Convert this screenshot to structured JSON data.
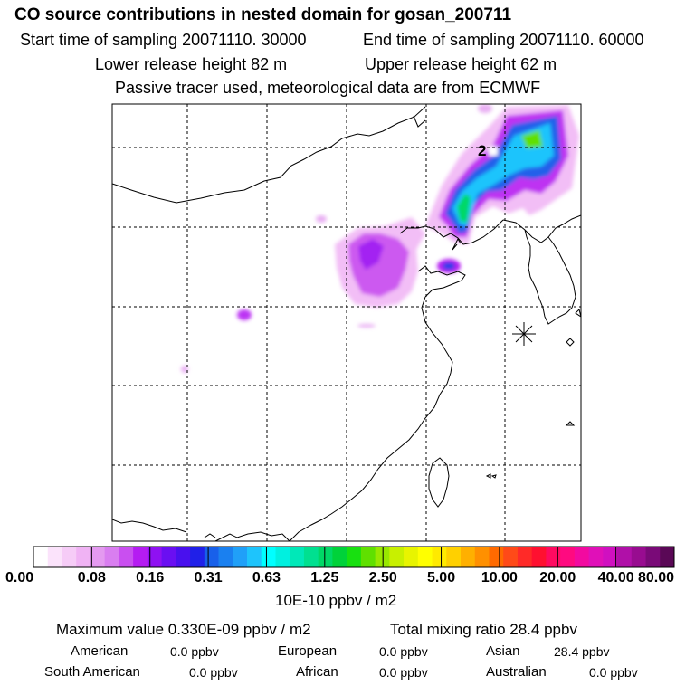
{
  "header": {
    "title": "CO  source contributions in nested domain for gosan_200711",
    "start_label": "Start time of sampling 20071110. 30000",
    "end_label": "End time of sampling 20071110. 60000",
    "lower_release": "Lower release height   82 m",
    "upper_release": "Upper release height   62 m",
    "tracer_note": "Passive tracer used, meteorological data are from ECMWF"
  },
  "map": {
    "contour_label": "2",
    "station_marker": "receptor-asterisk"
  },
  "colorbar": {
    "unit_label": "10E-10 ppbv / m2",
    "ticks": [
      "0.00",
      "0.08",
      "0.16",
      "0.31",
      "0.63",
      "1.25",
      "2.50",
      "5.00",
      "10.00",
      "20.00",
      "40.00",
      "80.00"
    ],
    "segment_colors": [
      "#ffffff",
      "#fbe3fb",
      "#f6ccf7",
      "#f0b3f4",
      "#e49af0",
      "#d97ef0",
      "#c94ff0",
      "#b51cf2",
      "#8f11f2",
      "#6a0ff2",
      "#4910ee",
      "#2020e8",
      "#1860ea",
      "#1a80f0",
      "#20a0f8",
      "#1ec4fc",
      "#00ffff",
      "#00f0e0",
      "#00e8b8",
      "#00e090",
      "#00d866",
      "#00d23a",
      "#18e010",
      "#60e000",
      "#98e800",
      "#c8f000",
      "#e8f400",
      "#ffff00",
      "#ffea00",
      "#ffd000",
      "#ffb000",
      "#ff9000",
      "#ff6a00",
      "#ff4a18",
      "#ff2a28",
      "#ff1030",
      "#ff0a60",
      "#ff0a80",
      "#f20aa0",
      "#e010b8",
      "#d010c0",
      "#b010a8",
      "#980c90",
      "#7a0a78",
      "#5a0856"
    ]
  },
  "summary": {
    "max_value": "Maximum value  0.330E-09 ppbv / m2",
    "total_mixing": "Total mixing ratio       28.4 ppbv",
    "regions": [
      {
        "name": "American",
        "value": "0.0 ppbv"
      },
      {
        "name": "European",
        "value": "0.0 ppbv"
      },
      {
        "name": "Asian",
        "value": "28.4 ppbv"
      },
      {
        "name": "South American",
        "value": "0.0 ppbv"
      },
      {
        "name": "African",
        "value": "0.0 ppbv"
      },
      {
        "name": "Australian",
        "value": "0.0 ppbv"
      }
    ]
  },
  "chart_data": {
    "type": "heatmap",
    "title": "CO  source contributions in nested domain for gosan_200711",
    "colorbar_ticks": [
      0.0,
      0.08,
      0.16,
      0.31,
      0.63,
      1.25,
      2.5,
      5.0,
      10.0,
      20.0,
      40.0,
      80.0
    ],
    "colorbar_unit": "10E-10 ppbv / m2",
    "max_value_ppbv_per_m2": 3.3e-10,
    "total_mixing_ratio_ppbv": 28.4,
    "regional_contributions_ppbv": {
      "American": 0.0,
      "European": 0.0,
      "Asian": 28.4,
      "South American": 0.0,
      "African": 0.0,
      "Australian": 0.0
    },
    "contour_levels_labeled": [
      "2"
    ]
  }
}
